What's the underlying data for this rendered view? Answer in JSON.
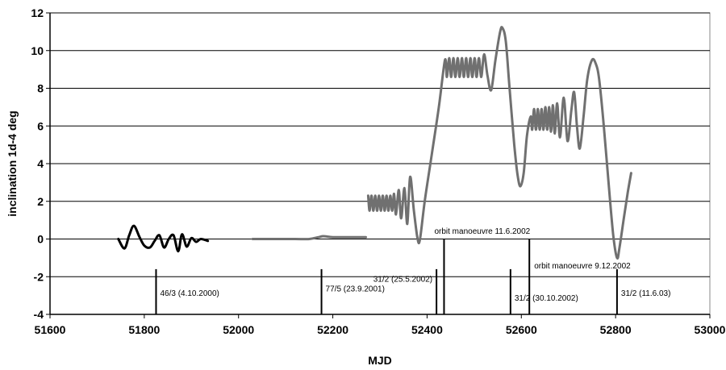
{
  "chart_data": {
    "type": "line",
    "title": "",
    "xlabel": "MJD",
    "ylabel": "inclination  1d-4 deg",
    "xlim": [
      51600,
      53000
    ],
    "ylim": [
      -4,
      12
    ],
    "x_ticks": [
      51600,
      51800,
      52000,
      52200,
      52400,
      52600,
      52800,
      53000
    ],
    "y_ticks": [
      -4,
      -2,
      0,
      2,
      4,
      6,
      8,
      10,
      12
    ],
    "grid": "horizontal",
    "legend": "none",
    "colors": {
      "segment_dark": "#000000",
      "segment_gray": "#707070",
      "grid": "#000000"
    },
    "series": [
      {
        "color": "#000000",
        "points": [
          [
            51745,
            0
          ],
          [
            51758,
            -0.5
          ],
          [
            51768,
            0.2
          ],
          [
            51778,
            0.7
          ],
          [
            51790,
            0.1
          ],
          [
            51800,
            -0.35
          ],
          [
            51812,
            -0.45
          ],
          [
            51822,
            -0.1
          ],
          [
            51832,
            0.2
          ],
          [
            51842,
            -0.45
          ],
          [
            51852,
            0.0
          ],
          [
            51862,
            0.2
          ],
          [
            51872,
            -0.65
          ],
          [
            51880,
            0.25
          ],
          [
            51890,
            -0.4
          ],
          [
            51900,
            0.05
          ],
          [
            51910,
            -0.15
          ],
          [
            51920,
            0.0
          ],
          [
            51935,
            -0.1
          ]
        ]
      },
      {
        "color": "#707070",
        "points": [
          [
            52030,
            0
          ],
          [
            52080,
            0
          ],
          [
            52120,
            0
          ],
          [
            52150,
            0
          ],
          [
            52170,
            0.1
          ],
          [
            52180,
            0.15
          ],
          [
            52200,
            0.1
          ],
          [
            52230,
            0.1
          ],
          [
            52270,
            0.1
          ]
        ]
      },
      {
        "color": "#707070",
        "points": [
          [
            52275,
            2.3
          ],
          [
            52278,
            1.5
          ],
          [
            52282,
            2.3
          ],
          [
            52286,
            1.5
          ],
          [
            52290,
            2.3
          ],
          [
            52294,
            1.5
          ],
          [
            52298,
            2.3
          ],
          [
            52302,
            1.5
          ],
          [
            52306,
            2.3
          ],
          [
            52310,
            1.5
          ],
          [
            52314,
            2.3
          ],
          [
            52318,
            1.5
          ],
          [
            52322,
            2.3
          ],
          [
            52326,
            1.5
          ],
          [
            52330,
            2.4
          ],
          [
            52334,
            1.3
          ],
          [
            52340,
            2.6
          ],
          [
            52345,
            1.1
          ],
          [
            52352,
            2.7
          ],
          [
            52358,
            0.8
          ],
          [
            52364,
            3.3
          ],
          [
            52372,
            1.5
          ],
          [
            52380,
            0.0
          ],
          [
            52385,
            0.0
          ],
          [
            52395,
            2.0
          ],
          [
            52410,
            4.5
          ],
          [
            52425,
            7.0
          ],
          [
            52438,
            9.5
          ],
          [
            52442,
            8.6
          ],
          [
            52447,
            9.6
          ],
          [
            52451,
            8.6
          ],
          [
            52456,
            9.6
          ],
          [
            52460,
            8.6
          ],
          [
            52465,
            9.6
          ],
          [
            52469,
            8.6
          ],
          [
            52474,
            9.6
          ],
          [
            52478,
            8.6
          ],
          [
            52483,
            9.6
          ],
          [
            52487,
            8.6
          ],
          [
            52492,
            9.6
          ],
          [
            52496,
            8.6
          ],
          [
            52501,
            9.6
          ],
          [
            52505,
            8.6
          ],
          [
            52510,
            9.6
          ],
          [
            52515,
            8.6
          ],
          [
            52521,
            9.8
          ],
          [
            52528,
            8.7
          ],
          [
            52536,
            7.9
          ],
          [
            52545,
            9.5
          ],
          [
            52555,
            11.0
          ],
          [
            52560,
            11.2
          ],
          [
            52567,
            10.5
          ],
          [
            52575,
            8.0
          ],
          [
            52585,
            5.0
          ],
          [
            52592,
            3.4
          ],
          [
            52598,
            2.8
          ],
          [
            52605,
            3.5
          ],
          [
            52612,
            5.5
          ],
          [
            52620,
            6.5
          ],
          [
            52623,
            5.8
          ],
          [
            52627,
            6.9
          ],
          [
            52631,
            5.8
          ],
          [
            52635,
            6.9
          ],
          [
            52639,
            5.8
          ],
          [
            52643,
            6.9
          ],
          [
            52647,
            5.8
          ],
          [
            52651,
            7.0
          ],
          [
            52655,
            5.8
          ],
          [
            52659,
            7.0
          ],
          [
            52663,
            5.7
          ],
          [
            52667,
            7.1
          ],
          [
            52671,
            5.6
          ],
          [
            52676,
            7.2
          ],
          [
            52682,
            5.4
          ],
          [
            52690,
            7.5
          ],
          [
            52698,
            5.2
          ],
          [
            52706,
            6.8
          ],
          [
            52712,
            7.8
          ],
          [
            52718,
            6.0
          ],
          [
            52724,
            4.8
          ],
          [
            52732,
            6.5
          ],
          [
            52740,
            8.5
          ],
          [
            52750,
            9.5
          ],
          [
            52758,
            9.3
          ],
          [
            52765,
            8.5
          ],
          [
            52775,
            6.0
          ],
          [
            52785,
            3.0
          ],
          [
            52795,
            0.2
          ],
          [
            52803,
            -1.0
          ],
          [
            52808,
            -0.5
          ],
          [
            52818,
            1.2
          ],
          [
            52826,
            2.5
          ],
          [
            52833,
            3.5
          ]
        ]
      }
    ],
    "events": [
      {
        "x": 51825,
        "label": "46/3 (4.10.2000)",
        "bottom": -4,
        "top": -1.6,
        "label_y": -2.85
      },
      {
        "x": 52176,
        "label": "77/5 (23.9.2001)",
        "bottom": -4,
        "top": -1.6,
        "label_y": -2.6
      },
      {
        "x": 52420,
        "label": "31/2 (25.5.2002)",
        "bottom": -4,
        "top": -1.6,
        "label_y": -2.1
      },
      {
        "x": 52436,
        "label": "orbit manoeuvre 11.6.2002",
        "bottom": -4,
        "top": 0.0,
        "label_y": 0.45
      },
      {
        "x": 52577,
        "label": "31/2 (30.10.2002)",
        "bottom": -4,
        "top": -1.6,
        "label_y": -3.1
      },
      {
        "x": 52617,
        "label": "orbit manoeuvre 9.12.2002",
        "bottom": -4,
        "top": 0.0,
        "label_y": -1.4
      },
      {
        "x": 52803,
        "label": "31/2 (11.6.03)",
        "bottom": -4,
        "top": -1.6,
        "label_y": -2.85
      }
    ]
  }
}
